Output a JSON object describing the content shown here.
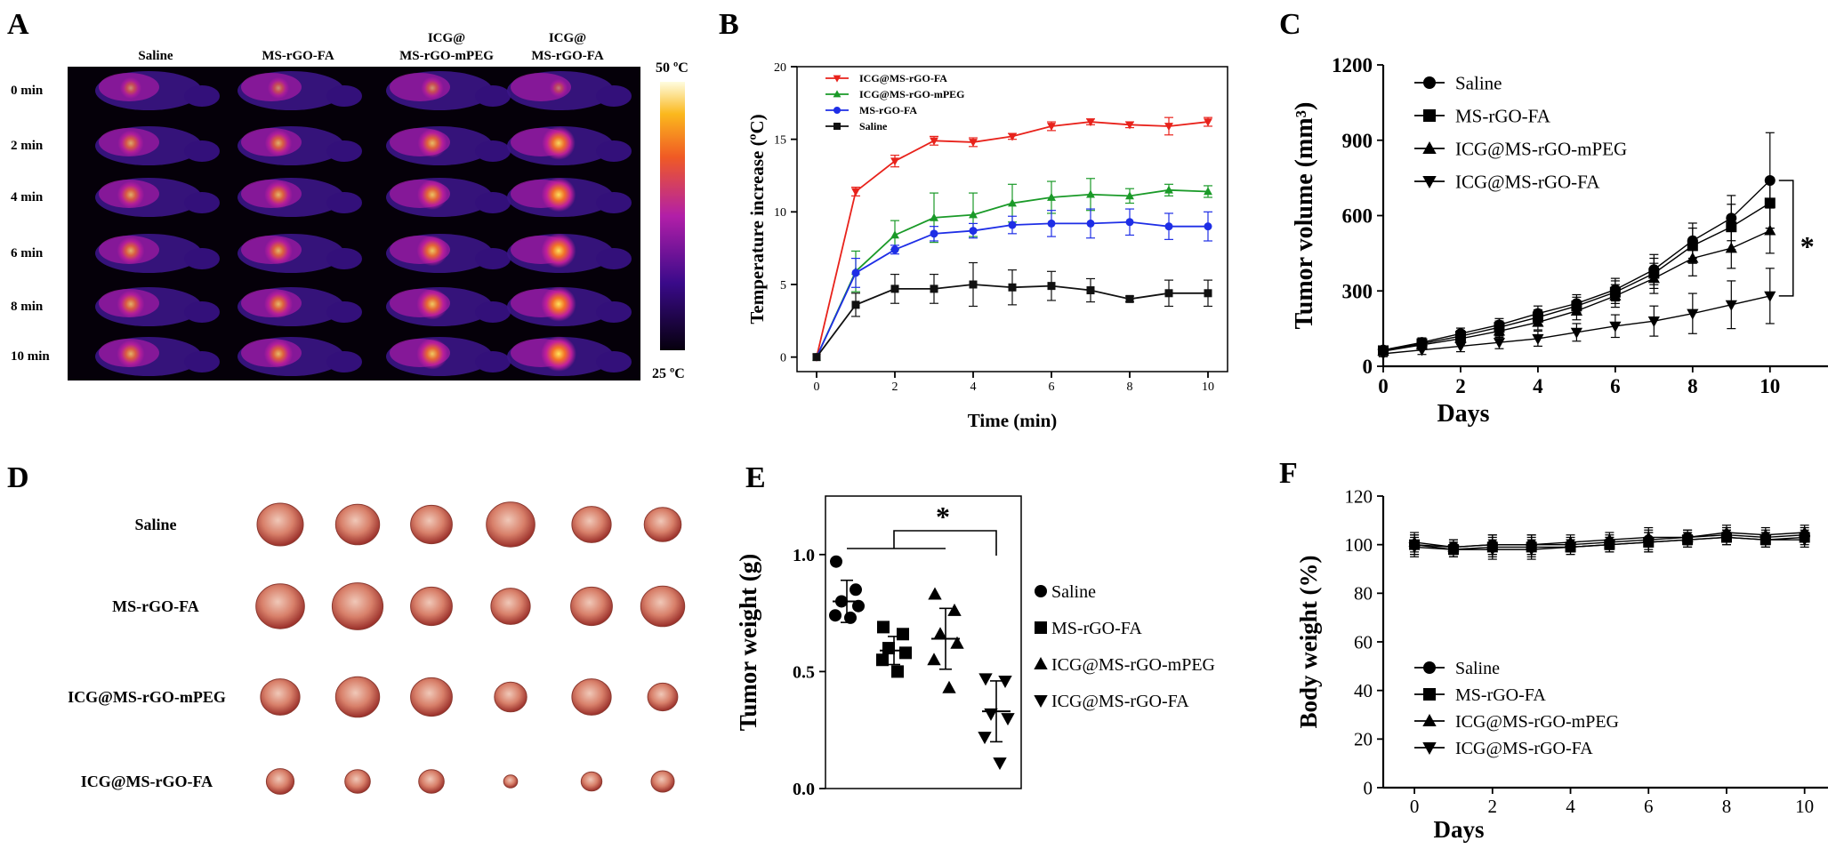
{
  "panel_letters": [
    "A",
    "B",
    "C",
    "D",
    "E",
    "F"
  ],
  "panel_a": {
    "columns": [
      "Saline",
      "MS-rGO-FA",
      "ICG@",
      "MS-rGO-mPEG",
      "ICG@",
      "MS-rGO-FA"
    ],
    "rows": [
      "0 min",
      "2 min",
      "4 min",
      "6 min",
      "8 min",
      "10 min"
    ],
    "scale_max": "50 ºC",
    "scale_min": "25 ºC",
    "intensity": [
      [
        0.35,
        0.35,
        0.4,
        0.2
      ],
      [
        0.55,
        0.6,
        0.7,
        0.9
      ],
      [
        0.6,
        0.65,
        0.75,
        0.95
      ],
      [
        0.62,
        0.65,
        0.78,
        0.97
      ],
      [
        0.62,
        0.67,
        0.8,
        0.98
      ],
      [
        0.63,
        0.68,
        0.8,
        1.0
      ]
    ]
  },
  "panel_d": {
    "rows": [
      "Saline",
      "MS-rGO-FA",
      "ICG@MS-rGO-mPEG",
      "ICG@MS-rGO-FA"
    ],
    "tumor_size": [
      [
        1.0,
        0.95,
        0.9,
        1.05,
        0.85,
        0.8
      ],
      [
        1.05,
        1.1,
        0.9,
        0.85,
        0.9,
        0.95
      ],
      [
        0.85,
        0.95,
        0.9,
        0.7,
        0.85,
        0.65
      ],
      [
        0.6,
        0.55,
        0.55,
        0.3,
        0.45,
        0.5
      ]
    ]
  },
  "chart_data": [
    {
      "id": "B",
      "type": "line",
      "xlabel": "Time (min)",
      "ylabel": "Temperature increase (ºC)",
      "xlim": [
        -0.5,
        10.5
      ],
      "ylim": [
        -1,
        20
      ],
      "xticks": [
        0,
        2,
        4,
        6,
        8,
        10
      ],
      "yticks": [
        0,
        5,
        10,
        15,
        20
      ],
      "legend": "top-left",
      "x": [
        0,
        1,
        2,
        3,
        4,
        5,
        6,
        7,
        8,
        9,
        10
      ],
      "series": [
        {
          "name": "ICG@MS-rGO-FA",
          "color": "#e8221b",
          "marker": "triangle-down",
          "values": [
            0,
            11.4,
            13.5,
            14.9,
            14.8,
            15.2,
            15.9,
            16.2,
            16.0,
            15.9,
            16.2
          ],
          "errors": [
            0,
            0.3,
            0.4,
            0.3,
            0.3,
            0.2,
            0.3,
            0.2,
            0.2,
            0.6,
            0.3
          ]
        },
        {
          "name": "ICG@MS-rGO-mPEG",
          "color": "#1a9a28",
          "marker": "triangle-up",
          "values": [
            0,
            5.9,
            8.4,
            9.6,
            9.8,
            10.6,
            11.0,
            11.2,
            11.1,
            11.5,
            11.4
          ],
          "errors": [
            0,
            1.4,
            1.0,
            1.7,
            1.5,
            1.3,
            1.1,
            1.1,
            0.5,
            0.4,
            0.4
          ]
        },
        {
          "name": "MS-rGO-FA",
          "color": "#1e2ee6",
          "marker": "circle",
          "values": [
            0,
            5.8,
            7.4,
            8.5,
            8.7,
            9.1,
            9.2,
            9.2,
            9.3,
            9.0,
            9.0
          ],
          "errors": [
            0,
            1.0,
            0.3,
            0.5,
            0.5,
            0.6,
            0.9,
            1.0,
            0.9,
            0.9,
            1.0
          ]
        },
        {
          "name": "Saline",
          "color": "#111111",
          "marker": "square",
          "values": [
            0,
            3.6,
            4.7,
            4.7,
            5.0,
            4.8,
            4.9,
            4.6,
            4.0,
            4.4,
            4.4
          ],
          "errors": [
            0,
            0.8,
            1.0,
            1.0,
            1.5,
            1.2,
            1.0,
            0.8,
            0.2,
            0.9,
            0.9
          ]
        }
      ]
    },
    {
      "id": "C",
      "type": "line",
      "xlabel": "Days",
      "ylabel": "Tumor volume (mm³)",
      "xlim": [
        0,
        11.5
      ],
      "ylim": [
        0,
        1200
      ],
      "xticks": [
        0,
        2,
        4,
        6,
        8,
        10
      ],
      "yticks": [
        0,
        300,
        600,
        900,
        1200
      ],
      "legend": "top-left",
      "annotation": "*",
      "x": [
        0,
        1,
        2,
        3,
        4,
        5,
        6,
        7,
        8,
        9,
        10
      ],
      "series": [
        {
          "name": "Saline",
          "marker": "circle",
          "values": [
            65,
            95,
            130,
            165,
            210,
            250,
            305,
            385,
            500,
            590,
            740
          ],
          "errors": [
            12,
            18,
            22,
            25,
            30,
            35,
            45,
            60,
            70,
            90,
            190
          ]
        },
        {
          "name": "MS-rGO-FA",
          "marker": "square",
          "values": [
            62,
            90,
            120,
            155,
            195,
            240,
            295,
            370,
            480,
            555,
            650
          ],
          "errors": [
            12,
            18,
            22,
            25,
            30,
            35,
            45,
            60,
            70,
            90,
            100
          ]
        },
        {
          "name": "ICG@MS-rGO-mPEG",
          "marker": "triangle-up",
          "values": [
            60,
            85,
            110,
            140,
            175,
            220,
            280,
            350,
            430,
            470,
            540
          ],
          "errors": [
            12,
            18,
            22,
            25,
            30,
            35,
            45,
            60,
            70,
            80,
            90
          ]
        },
        {
          "name": "ICG@MS-rGO-FA",
          "marker": "triangle-down",
          "values": [
            50,
            65,
            80,
            95,
            110,
            135,
            160,
            180,
            210,
            245,
            280
          ],
          "errors": [
            12,
            18,
            22,
            25,
            30,
            35,
            45,
            60,
            80,
            95,
            110
          ]
        }
      ]
    },
    {
      "id": "E",
      "type": "scatter",
      "ylabel": "Tumor weight (g)",
      "ylim": [
        0,
        1.25
      ],
      "yticks": [
        0.0,
        0.5,
        1.0
      ],
      "ytick_labels": [
        "0.0",
        "0.5",
        "1.0"
      ],
      "legend": "right",
      "annotation": "*",
      "groups": [
        {
          "name": "Saline",
          "marker": "circle",
          "mean": 0.8,
          "sd": 0.09,
          "points": [
            0.97,
            0.85,
            0.8,
            0.78,
            0.74,
            0.73
          ]
        },
        {
          "name": "MS-rGO-FA",
          "marker": "square",
          "mean": 0.59,
          "sd": 0.06,
          "points": [
            0.69,
            0.66,
            0.6,
            0.58,
            0.55,
            0.5
          ]
        },
        {
          "name": "ICG@MS-rGO-mPEG",
          "marker": "triangle-up",
          "mean": 0.64,
          "sd": 0.13,
          "points": [
            0.83,
            0.76,
            0.66,
            0.62,
            0.55,
            0.43
          ]
        },
        {
          "name": "ICG@MS-rGO-FA",
          "marker": "triangle-down",
          "mean": 0.33,
          "sd": 0.13,
          "points": [
            0.47,
            0.46,
            0.32,
            0.3,
            0.22,
            0.11
          ]
        }
      ]
    },
    {
      "id": "F",
      "type": "line",
      "xlabel": "Days",
      "ylabel": "Body weight (%)",
      "xlim": [
        -0.8,
        10.6
      ],
      "ylim": [
        0,
        120
      ],
      "xticks": [
        0,
        2,
        4,
        6,
        8,
        10
      ],
      "yticks": [
        0,
        20,
        40,
        60,
        80,
        100,
        120
      ],
      "legend": "bottom-left",
      "x": [
        0,
        1,
        2,
        3,
        4,
        5,
        6,
        7,
        8,
        9,
        10
      ],
      "series": [
        {
          "name": "Saline",
          "marker": "circle",
          "values": [
            100,
            99,
            100,
            100,
            100,
            101,
            102,
            103,
            104,
            103,
            104
          ],
          "errors": [
            4,
            3,
            4,
            4,
            3,
            3,
            4,
            3,
            3,
            3,
            3
          ]
        },
        {
          "name": "MS-rGO-FA",
          "marker": "square",
          "values": [
            100,
            98,
            99,
            99,
            99,
            100,
            101,
            102,
            103,
            102,
            103
          ],
          "errors": [
            4,
            3,
            4,
            4,
            3,
            3,
            4,
            3,
            3,
            3,
            3
          ]
        },
        {
          "name": "ICG@MS-rGO-mPEG",
          "marker": "triangle-up",
          "values": [
            101,
            99,
            100,
            100,
            101,
            102,
            103,
            103,
            105,
            104,
            105
          ],
          "errors": [
            4,
            3,
            4,
            4,
            3,
            3,
            4,
            3,
            3,
            3,
            3
          ]
        },
        {
          "name": "ICG@MS-rGO-FA",
          "marker": "triangle-down",
          "values": [
            99,
            98,
            98,
            98,
            99,
            100,
            101,
            102,
            103,
            102,
            102
          ],
          "errors": [
            4,
            3,
            4,
            4,
            3,
            3,
            4,
            3,
            3,
            3,
            3
          ]
        }
      ]
    }
  ]
}
